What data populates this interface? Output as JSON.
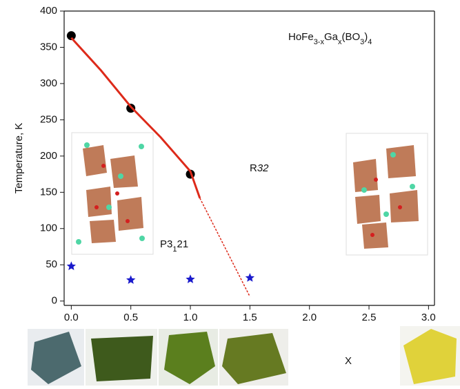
{
  "chart_data": {
    "type": "scatter",
    "y_label": "Temperature, K",
    "x_label": "X",
    "xlim": [
      -0.06,
      3.05
    ],
    "ylim": [
      -6,
      400
    ],
    "xticks": [
      {
        "value": 0,
        "label": "0.0"
      },
      {
        "value": 0.5,
        "label": "0.5"
      },
      {
        "value": 1,
        "label": "1.0"
      },
      {
        "value": 1.5,
        "label": "1.5"
      },
      {
        "value": 2,
        "label": "2.0"
      },
      {
        "value": 2.5,
        "label": "2.5"
      },
      {
        "value": 3,
        "label": "3.0"
      }
    ],
    "yticks": [
      0,
      50,
      100,
      150,
      200,
      250,
      300,
      350,
      400
    ],
    "formula": [
      {
        "text": "HoFe"
      },
      {
        "text": "3-x",
        "sub": true
      },
      {
        "text": "Ga"
      },
      {
        "text": "x",
        "sub": true
      },
      {
        "text": "(BO"
      },
      {
        "text": "3",
        "sub": true
      },
      {
        "text": ")"
      },
      {
        "text": "4",
        "sub": true
      }
    ],
    "phase_low": [
      {
        "text": "P3"
      },
      {
        "text": "1",
        "sub": true
      },
      {
        "text": "21"
      }
    ],
    "phase_high": [
      {
        "text": "R"
      },
      {
        "text": "32",
        "italic": true
      }
    ],
    "series": [
      {
        "style": "circle",
        "color": "#000000",
        "x": [
          0,
          0.5,
          1.0
        ],
        "values": [
          366,
          266,
          175
        ]
      },
      {
        "style": "star",
        "color": "#1a1acc",
        "x": [
          0,
          0.5,
          1.0,
          1.5
        ],
        "values": [
          48,
          29,
          30,
          32
        ]
      },
      {
        "style": "solid-line",
        "color": "#dd2a1a",
        "x": [
          0,
          0.25,
          0.5,
          0.75,
          1.0,
          1.08
        ],
        "values": [
          363,
          318,
          268,
          226,
          179,
          142
        ]
      },
      {
        "style": "dotted-line",
        "color": "#dd2a1a",
        "x": [
          1.08,
          1.25,
          1.5
        ],
        "values": [
          142,
          87,
          6
        ]
      }
    ]
  }
}
